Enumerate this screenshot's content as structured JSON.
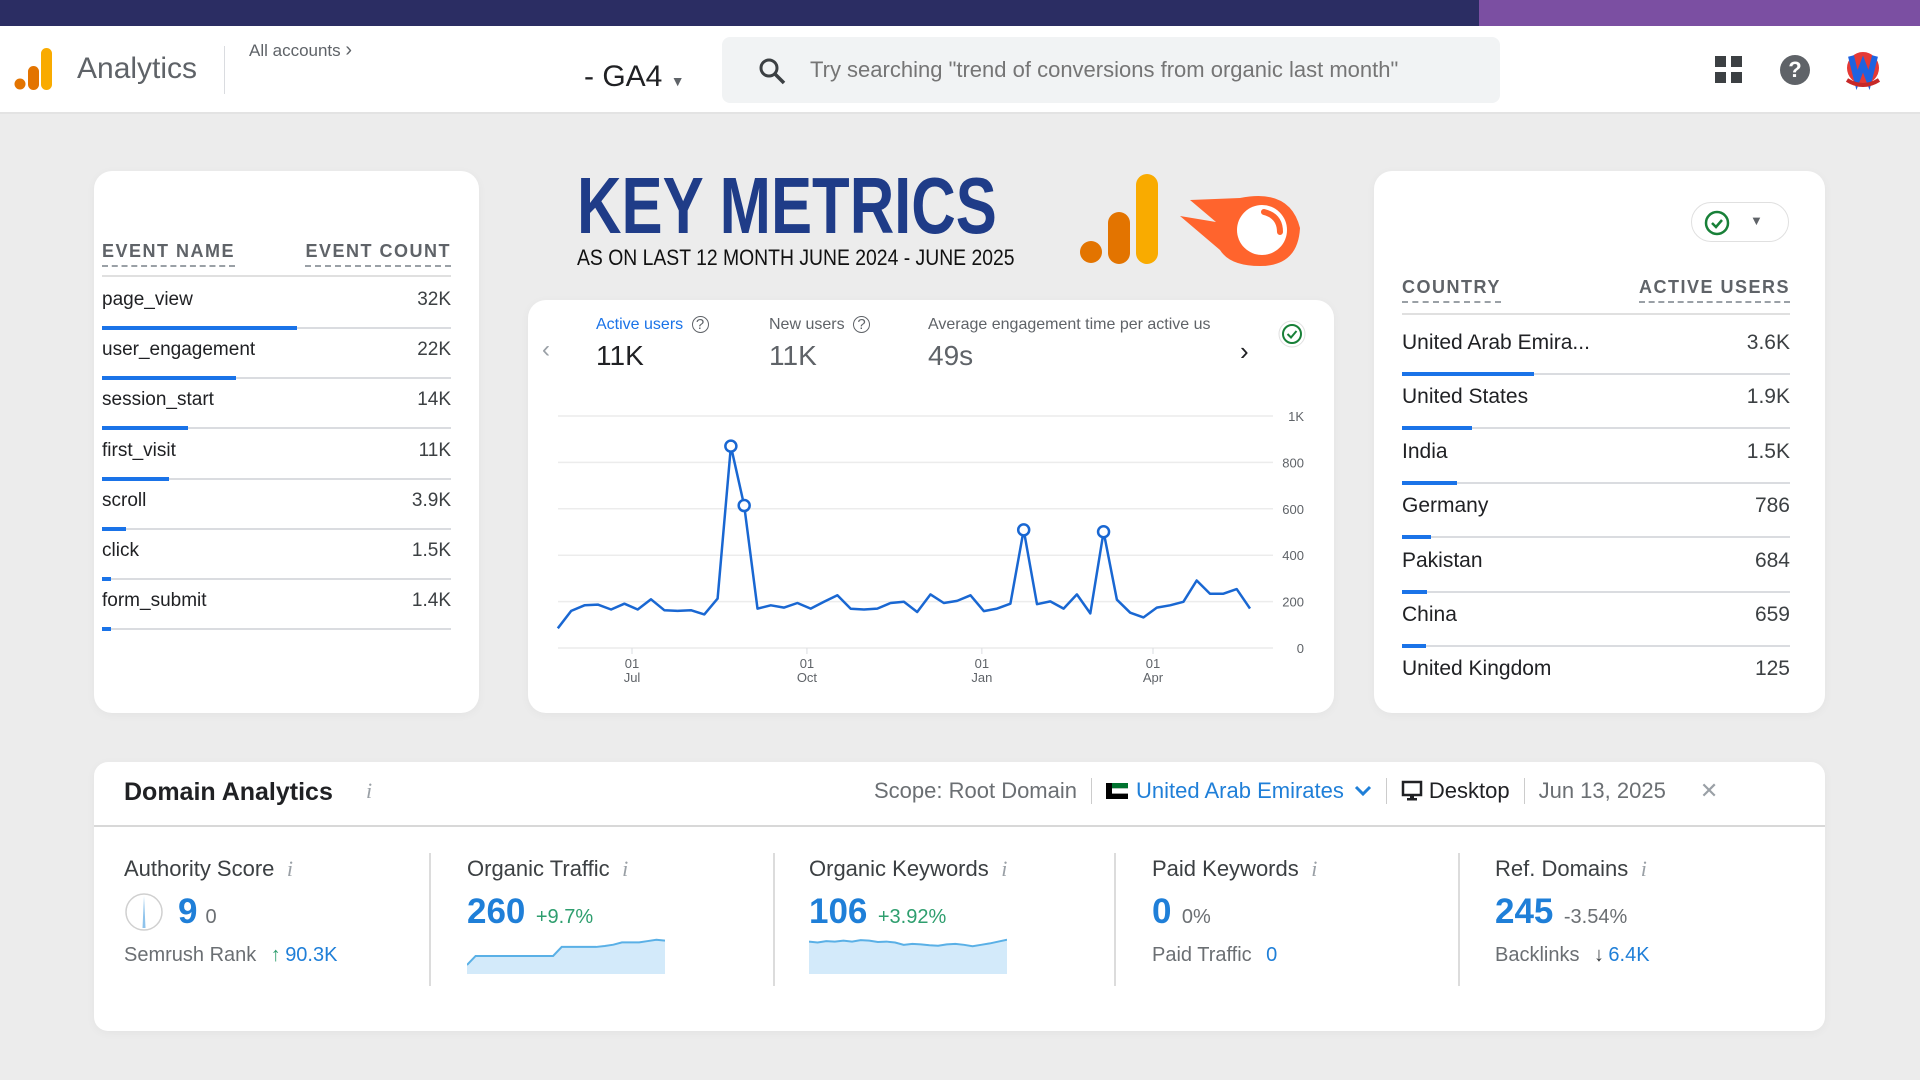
{
  "header": {
    "app_name": "Analytics",
    "breadcrumb": "All accounts",
    "property": "- GA4",
    "search_placeholder": "Try searching \"trend of conversions from organic last month\"",
    "icons": [
      "analytics-logo",
      "chevron-right-icon",
      "caret-down-icon",
      "search-icon",
      "apps-grid-icon",
      "help-icon",
      "avatar"
    ]
  },
  "hero": {
    "title": "KEY METRICS",
    "subtitle": "AS ON LAST 12 MONTH JUNE 2024 - JUNE 2025",
    "logos": [
      "google-analytics-logo",
      "semrush-logo"
    ],
    "colors": {
      "title": "#1f3c88",
      "ga_orange": "#e37400",
      "ga_yellow": "#f9ab00",
      "semrush": "#ff642d"
    }
  },
  "events": {
    "col_name": "EVENT NAME",
    "col_count": "EVENT COUNT",
    "rows": [
      {
        "name": "page_view",
        "count": "32K",
        "value": 32000
      },
      {
        "name": "user_engagement",
        "count": "22K",
        "value": 22000
      },
      {
        "name": "session_start",
        "count": "14K",
        "value": 14000
      },
      {
        "name": "first_visit",
        "count": "11K",
        "value": 11000
      },
      {
        "name": "scroll",
        "count": "3.9K",
        "value": 3900
      },
      {
        "name": "click",
        "count": "1.5K",
        "value": 1500
      },
      {
        "name": "form_submit",
        "count": "1.4K",
        "value": 1400
      }
    ]
  },
  "metrics_card": {
    "tabs": [
      {
        "label": "Active users",
        "value": "11K",
        "active": true
      },
      {
        "label": "New users",
        "value": "11K",
        "active": false
      },
      {
        "label": "Average engagement time per active us",
        "value": "49s",
        "active": false
      }
    ]
  },
  "chart_data": {
    "type": "line",
    "title": "",
    "xlabel": "",
    "ylabel": "",
    "ylim": [
      0,
      1000
    ],
    "y_ticks": [
      "0",
      "200",
      "400",
      "600",
      "800",
      "1K"
    ],
    "y_tick_values": [
      0,
      200,
      400,
      600,
      800,
      1000
    ],
    "x_ticks": [
      {
        "day": "01",
        "month": "Jul",
        "date": "2024-07-01"
      },
      {
        "day": "01",
        "month": "Oct",
        "date": "2024-10-01"
      },
      {
        "day": "01",
        "month": "Jan",
        "date": "2025-01-01"
      },
      {
        "day": "01",
        "month": "Apr",
        "date": "2025-04-01"
      }
    ],
    "grid": true,
    "color": "#1967d2",
    "start_date": "2024-05-23",
    "interval": "weekly",
    "values": [
      85,
      160,
      184,
      187,
      166,
      191,
      166,
      210,
      163,
      160,
      163,
      145,
      213,
      870,
      614,
      170,
      184,
      174,
      194,
      170,
      199,
      227,
      169,
      166,
      170,
      194,
      199,
      155,
      231,
      194,
      203,
      227,
      159,
      170,
      191,
      509,
      189,
      201,
      170,
      231,
      149,
      501,
      208,
      152,
      132,
      174,
      184,
      199,
      291,
      234,
      234,
      254,
      170
    ],
    "highlighted_points": [
      13,
      14,
      35,
      41
    ]
  },
  "countries": {
    "col_name": "COUNTRY",
    "col_count": "ACTIVE USERS",
    "rows": [
      {
        "name": "United Arab Emira...",
        "count": "3.6K",
        "value": 3600
      },
      {
        "name": "United States",
        "count": "1.9K",
        "value": 1900
      },
      {
        "name": "India",
        "count": "1.5K",
        "value": 1500
      },
      {
        "name": "Germany",
        "count": "786",
        "value": 786
      },
      {
        "name": "Pakistan",
        "count": "684",
        "value": 684
      },
      {
        "name": "China",
        "count": "659",
        "value": 659
      },
      {
        "name": "United Kingdom",
        "count": "125",
        "value": 125
      }
    ]
  },
  "domain": {
    "title": "Domain Analytics",
    "info": "i",
    "scope": "Scope: Root Domain",
    "country": "United Arab Emirates",
    "device": "Desktop",
    "date": "Jun 13, 2025",
    "close": "✕",
    "metrics": [
      {
        "label": "Authority Score",
        "value": "9",
        "change": "0",
        "sub_label": "Semrush Rank",
        "sub_arrow": "↑",
        "sub_value": "90.3K"
      },
      {
        "label": "Organic Traffic",
        "value": "260",
        "change": "+9.7%",
        "trend": [
          2,
          4,
          4,
          4,
          4,
          4,
          4,
          4,
          4,
          4,
          4,
          6,
          6,
          6,
          6,
          6,
          6.2,
          6.5,
          7,
          7,
          7,
          7.3,
          7.6,
          7.4
        ]
      },
      {
        "label": "Organic Keywords",
        "value": "106",
        "change": "+3.92%",
        "trend": [
          7,
          6.8,
          7.1,
          7,
          7.2,
          7,
          7.3,
          7.2,
          6.9,
          7,
          6.8,
          6.3,
          6.5,
          6.4,
          6.2,
          6.1,
          6.4,
          6.5,
          6.3,
          6,
          6.3,
          6.6,
          7,
          7.4
        ]
      },
      {
        "label": "Paid Keywords",
        "value": "0",
        "change": "0%",
        "sub_label": "Paid Traffic",
        "sub_value": "0"
      },
      {
        "label": "Ref. Domains",
        "value": "245",
        "change": "-3.54%",
        "sub_label": "Backlinks",
        "sub_arrow": "↓",
        "sub_value": "6.4K"
      }
    ],
    "colors": {
      "value": "#1f7fd8",
      "positive": "#2e9e6e",
      "negative": "#6b6f73"
    }
  }
}
